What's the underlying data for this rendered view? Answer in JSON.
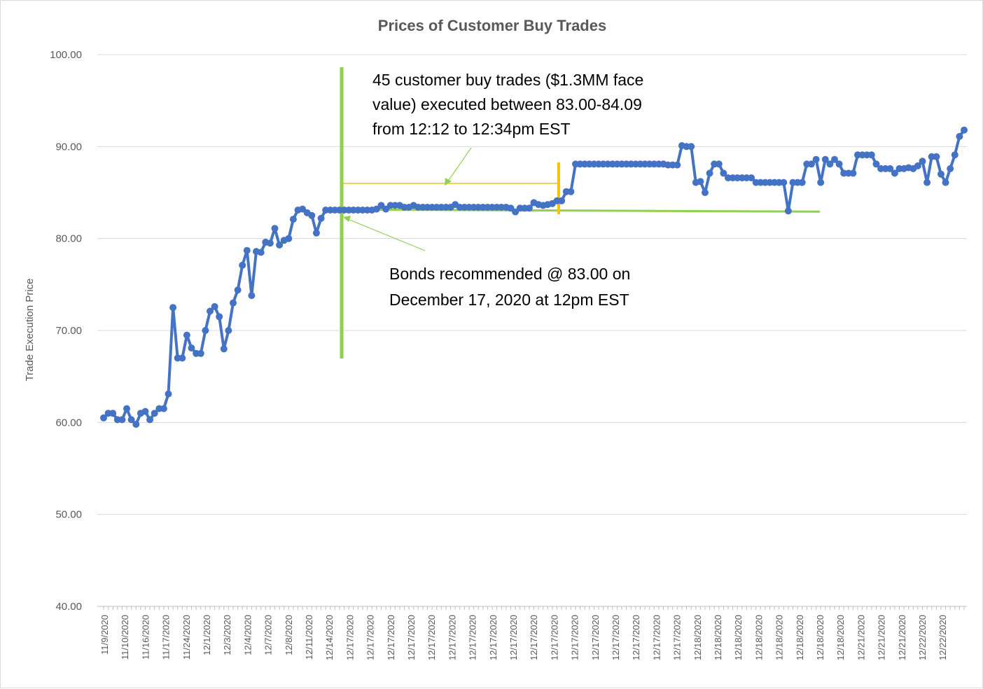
{
  "chart_data": {
    "type": "line",
    "title": "Prices of Customer Buy Trades",
    "xlabel": "",
    "ylabel": "Trade Execution Price",
    "ylim": [
      40,
      100
    ],
    "yticks": [
      "100.00",
      "90.00",
      "80.00",
      "70.00",
      "60.00",
      "50.00",
      "40.00"
    ],
    "grid": true,
    "legend": "none",
    "x_tick_labels": [
      "11/9/2020",
      "11/10/2020",
      "11/16/2020",
      "11/17/2020",
      "11/24/2020",
      "12/1/2020",
      "12/3/2020",
      "12/4/2020",
      "12/7/2020",
      "12/8/2020",
      "12/11/2020",
      "12/14/2020",
      "12/17/2020",
      "12/17/2020",
      "12/17/2020",
      "12/17/2020",
      "12/17/2020",
      "12/17/2020",
      "12/17/2020",
      "12/17/2020",
      "12/17/2020",
      "12/17/2020",
      "12/17/2020",
      "12/17/2020",
      "12/17/2020",
      "12/17/2020",
      "12/17/2020",
      "12/17/2020",
      "12/17/2020",
      "12/18/2020",
      "12/18/2020",
      "12/18/2020",
      "12/18/2020",
      "12/18/2020",
      "12/18/2020",
      "12/18/2020",
      "12/18/2020",
      "12/21/2020",
      "12/21/2020",
      "12/21/2020",
      "12/22/2020",
      "12/22/2020"
    ],
    "series": [
      {
        "color": "#4472C4",
        "values": [
          60.5,
          61.0,
          61.0,
          60.3,
          60.3,
          61.5,
          60.3,
          59.8,
          61.0,
          61.2,
          60.3,
          61.0,
          61.5,
          61.5,
          63.1,
          72.5,
          67.0,
          67.0,
          69.5,
          68.1,
          67.5,
          67.5,
          70.0,
          72.1,
          72.6,
          71.5,
          68.0,
          70.0,
          73.0,
          74.4,
          77.1,
          78.7,
          73.8,
          78.6,
          78.5,
          79.6,
          79.5,
          81.1,
          79.3,
          79.8,
          80.0,
          82.1,
          83.1,
          83.2,
          82.8,
          82.5,
          80.6,
          82.2,
          83.1,
          83.1,
          83.1,
          83.1,
          83.1,
          83.1,
          83.1,
          83.1,
          83.1,
          83.1,
          83.1,
          83.2,
          83.6,
          83.2,
          83.6,
          83.6,
          83.6,
          83.4,
          83.4,
          83.6,
          83.4,
          83.4,
          83.4,
          83.4,
          83.4,
          83.4,
          83.4,
          83.4,
          83.7,
          83.4,
          83.4,
          83.4,
          83.4,
          83.4,
          83.4,
          83.4,
          83.4,
          83.4,
          83.4,
          83.4,
          83.3,
          82.9,
          83.3,
          83.3,
          83.3,
          83.9,
          83.7,
          83.6,
          83.7,
          83.8,
          84.1,
          84.1,
          85.1,
          85.1,
          88.1,
          88.1,
          88.1,
          88.1,
          88.1,
          88.1,
          88.1,
          88.1,
          88.1,
          88.1,
          88.1,
          88.1,
          88.1,
          88.1,
          88.1,
          88.1,
          88.1,
          88.1,
          88.1,
          88.1,
          88.0,
          88.0,
          88.0,
          90.1,
          90.0,
          90.0,
          86.1,
          86.2,
          85.0,
          87.1,
          88.1,
          88.1,
          87.1,
          86.6,
          86.6,
          86.6,
          86.6,
          86.6,
          86.6,
          86.1,
          86.1,
          86.1,
          86.1,
          86.1,
          86.1,
          86.1,
          83.0,
          86.1,
          86.1,
          86.1,
          88.1,
          88.1,
          88.6,
          86.1,
          88.6,
          88.1,
          88.6,
          88.1,
          87.1,
          87.1,
          87.1,
          89.1,
          89.1,
          89.1,
          89.1,
          88.1,
          87.6,
          87.6,
          87.6,
          87.1,
          87.6,
          87.6,
          87.7,
          87.6,
          87.9,
          88.4,
          86.1,
          88.9,
          88.9,
          87.0,
          86.1,
          87.6,
          89.1,
          91.1,
          91.8
        ]
      }
    ],
    "annotations": [
      {
        "lines": [
          "45 customer buy trades ($1.3MM face",
          "value) executed between 83.00-84.09",
          "from 12:12 to 12:34pm EST"
        ]
      },
      {
        "lines": [
          "Bonds recommended @ 83.00 on",
          "December 17, 2020 at 12pm EST"
        ]
      }
    ],
    "reference_price": 83.0,
    "range_top": 86.0
  }
}
